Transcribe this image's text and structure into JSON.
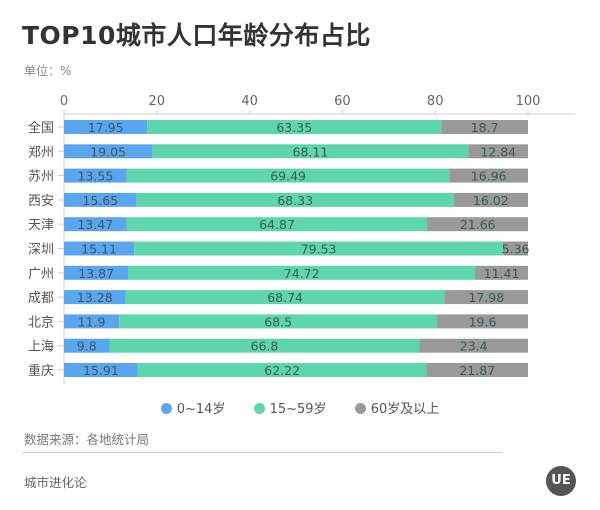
{
  "header": {
    "title": "TOP10城市人口年龄分布占比",
    "unit": "单位：%"
  },
  "footer": {
    "source": "数据来源：各地统计局",
    "brand": "城市进化论",
    "logo": "UE"
  },
  "chart_data": {
    "type": "bar",
    "orientation": "horizontal",
    "stacked": true,
    "title": "TOP10城市人口年龄分布占比",
    "categories": [
      "全国",
      "郑州",
      "苏州",
      "西安",
      "天津",
      "深圳",
      "广州",
      "成都",
      "北京",
      "上海",
      "重庆"
    ],
    "xlim": [
      0,
      100
    ],
    "xticks": [
      "0",
      "20",
      "40",
      "60",
      "80",
      "100"
    ],
    "legend_position": "bottom",
    "grid": false,
    "series": [
      {
        "name": "0~14岁",
        "color": "#5aa5f0",
        "values": [
          17.95,
          19.05,
          13.55,
          15.65,
          13.47,
          15.11,
          13.87,
          13.28,
          11.9,
          9.8,
          15.91
        ]
      },
      {
        "name": "15~59岁",
        "color": "#5dd6ab",
        "values": [
          63.35,
          68.11,
          69.49,
          68.33,
          64.87,
          79.53,
          74.72,
          68.74,
          68.5,
          66.8,
          62.22
        ]
      },
      {
        "name": "60岁及以上",
        "color": "#999999",
        "values": [
          18.7,
          12.84,
          16.96,
          16.02,
          21.66,
          5.36,
          11.41,
          17.98,
          19.6,
          23.4,
          21.87
        ]
      }
    ]
  }
}
